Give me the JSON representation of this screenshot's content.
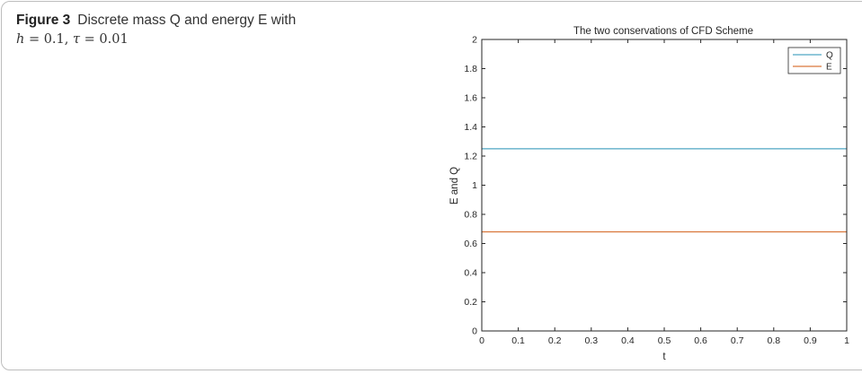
{
  "caption": {
    "label": "Figure 3",
    "text_line1": "Discrete mass Q and energy E with",
    "math_h_var": "h",
    "math_h_eq": " = 0.1,",
    "math_tau_var": "τ",
    "math_tau_eq": " = 0.01"
  },
  "chart_data": {
    "type": "line",
    "title": "The two conservations of CFD Scheme",
    "xlabel": "t",
    "ylabel": "E and Q",
    "xlim": [
      0,
      1
    ],
    "ylim": [
      0,
      2
    ],
    "xticks": [
      0,
      0.1,
      0.2,
      0.3,
      0.4,
      0.5,
      0.6,
      0.7,
      0.8,
      0.9,
      1
    ],
    "xtick_labels": [
      "0",
      "0.1",
      "0.2",
      "0.3",
      "0.4",
      "0.5",
      "0.6",
      "0.7",
      "0.8",
      "0.9",
      "1"
    ],
    "yticks": [
      0,
      0.2,
      0.4,
      0.6,
      0.8,
      1,
      1.2,
      1.4,
      1.6,
      1.8,
      2
    ],
    "ytick_labels": [
      "0",
      "0.2",
      "0.4",
      "0.6",
      "0.8",
      "1",
      "1.2",
      "1.4",
      "1.6",
      "1.8",
      "2"
    ],
    "grid": false,
    "legend_position": "top-right",
    "series": [
      {
        "name": "Q",
        "color": "#4fa6c3",
        "x": [
          0,
          1
        ],
        "y": [
          1.25,
          1.25
        ]
      },
      {
        "name": "E",
        "color": "#d9773a",
        "x": [
          0,
          1
        ],
        "y": [
          0.68,
          0.68
        ]
      }
    ]
  }
}
